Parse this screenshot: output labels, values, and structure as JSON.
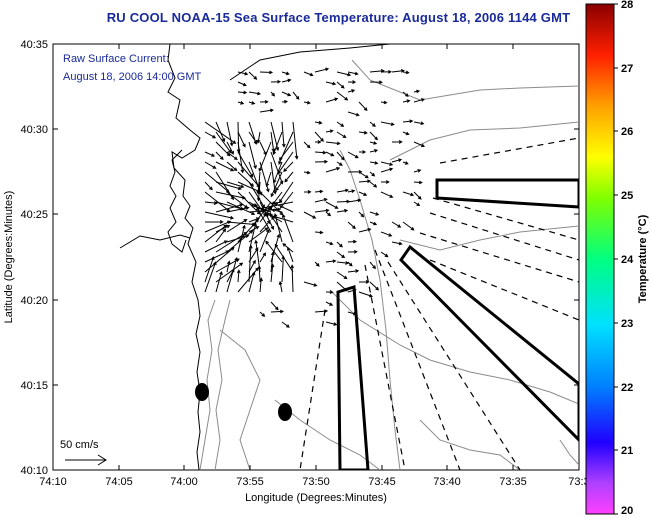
{
  "title": "RU COOL  NOAA-15  Sea Surface Temperature:  August 18, 2006 1144 GMT",
  "annotation": {
    "line1": "Raw Surface Current:",
    "line2": "August 18, 2006 14:00 GMT"
  },
  "scale_label": "50 cm/s",
  "axes": {
    "xlabel": "Longitude (Degrees:Minutes)",
    "ylabel": "Latitude (Degrees:Minutes)",
    "x_ticks": [
      "74:10",
      "74:05",
      "74:00",
      "73:55",
      "73:50",
      "73:45",
      "73:40",
      "73:35",
      "73:3"
    ],
    "y_ticks": [
      "40:35",
      "40:30",
      "40:25",
      "40:20",
      "40:15",
      "40:10"
    ]
  },
  "colorbar": {
    "label": "Temperature (°C)",
    "ticks": [
      "28",
      "27",
      "26",
      "25",
      "24",
      "23",
      "22",
      "21",
      "20"
    ],
    "min": 20,
    "max": 28
  }
}
